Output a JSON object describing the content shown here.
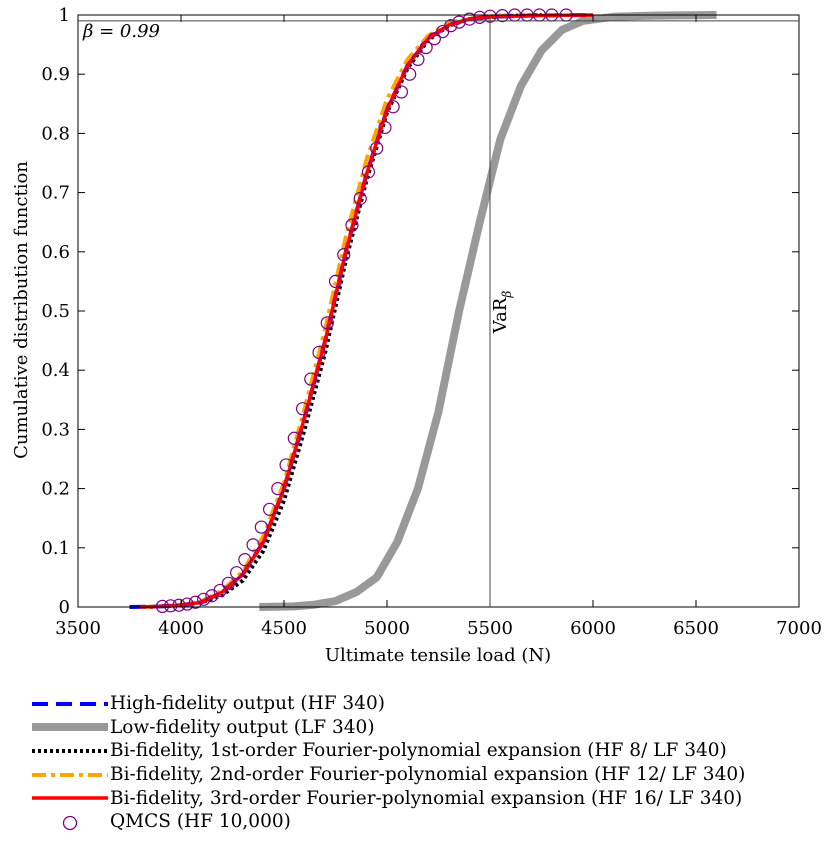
{
  "chart_data": {
    "type": "line",
    "xlabel": "Ultimate tensile load (N)",
    "ylabel": "Cumulative distribution function",
    "xlim": [
      3500,
      7000
    ],
    "ylim": [
      0,
      1
    ],
    "x_ticks": [
      3500,
      4000,
      4500,
      5000,
      5500,
      6000,
      6500,
      7000
    ],
    "y_ticks": [
      0,
      0.1,
      0.2,
      0.3,
      0.4,
      0.5,
      0.6,
      0.7,
      0.8,
      0.9,
      1
    ],
    "annotations": {
      "beta_label": "β = 0.99",
      "var_label": "VaR",
      "var_subscript": "β",
      "var_x": 5500,
      "beta_y": 0.99
    },
    "series": [
      {
        "name": "High-fidelity output (HF 340)",
        "color": "#0000ff",
        "style": "dashed",
        "points": [
          [
            3750,
            0
          ],
          [
            3900,
            0.001
          ],
          [
            4000,
            0.003
          ],
          [
            4100,
            0.008
          ],
          [
            4200,
            0.025
          ],
          [
            4300,
            0.055
          ],
          [
            4400,
            0.11
          ],
          [
            4500,
            0.2
          ],
          [
            4600,
            0.32
          ],
          [
            4700,
            0.45
          ],
          [
            4800,
            0.6
          ],
          [
            4900,
            0.73
          ],
          [
            5000,
            0.84
          ],
          [
            5100,
            0.915
          ],
          [
            5200,
            0.96
          ],
          [
            5300,
            0.983
          ],
          [
            5400,
            0.993
          ],
          [
            5500,
            0.997
          ],
          [
            5700,
            0.999
          ],
          [
            6000,
            1
          ]
        ]
      },
      {
        "name": "Low-fidelity output (LF 340)",
        "color": "#999999",
        "style": "solid-thick",
        "points": [
          [
            4380,
            0
          ],
          [
            4550,
            0.001
          ],
          [
            4650,
            0.004
          ],
          [
            4750,
            0.01
          ],
          [
            4850,
            0.025
          ],
          [
            4950,
            0.05
          ],
          [
            5050,
            0.11
          ],
          [
            5150,
            0.2
          ],
          [
            5250,
            0.33
          ],
          [
            5350,
            0.5
          ],
          [
            5450,
            0.65
          ],
          [
            5550,
            0.79
          ],
          [
            5650,
            0.88
          ],
          [
            5750,
            0.94
          ],
          [
            5850,
            0.975
          ],
          [
            5950,
            0.99
          ],
          [
            6100,
            0.997
          ],
          [
            6300,
            0.999
          ],
          [
            6600,
            1
          ]
        ]
      },
      {
        "name": "Bi-fidelity, 1st-order Fourier-polynomial expansion (HF 8/ LF 340)",
        "color": "#000000",
        "style": "dotted",
        "points": [
          [
            3850,
            0
          ],
          [
            4000,
            0.003
          ],
          [
            4100,
            0.008
          ],
          [
            4200,
            0.02
          ],
          [
            4300,
            0.045
          ],
          [
            4400,
            0.095
          ],
          [
            4500,
            0.18
          ],
          [
            4600,
            0.3
          ],
          [
            4700,
            0.43
          ],
          [
            4800,
            0.585
          ],
          [
            4900,
            0.72
          ],
          [
            5000,
            0.835
          ],
          [
            5100,
            0.91
          ],
          [
            5200,
            0.958
          ],
          [
            5300,
            0.982
          ],
          [
            5400,
            0.993
          ],
          [
            5550,
            0.998
          ],
          [
            5750,
            1
          ]
        ]
      },
      {
        "name": "Bi-fidelity, 2nd-order Fourier-polynomial expansion (HF 12/ LF 340)",
        "color": "#ffa500",
        "style": "dashdot",
        "points": [
          [
            3820,
            0
          ],
          [
            4000,
            0.003
          ],
          [
            4100,
            0.01
          ],
          [
            4200,
            0.028
          ],
          [
            4300,
            0.06
          ],
          [
            4400,
            0.12
          ],
          [
            4500,
            0.21
          ],
          [
            4600,
            0.335
          ],
          [
            4700,
            0.47
          ],
          [
            4800,
            0.625
          ],
          [
            4900,
            0.755
          ],
          [
            5000,
            0.858
          ],
          [
            5100,
            0.925
          ],
          [
            5200,
            0.965
          ],
          [
            5300,
            0.986
          ],
          [
            5400,
            0.995
          ],
          [
            5550,
            0.999
          ],
          [
            5700,
            1
          ]
        ]
      },
      {
        "name": "Bi-fidelity, 3rd-order Fourier-polynomial expansion (HF 16/ LF 340)",
        "color": "#ff0000",
        "style": "solid",
        "points": [
          [
            3800,
            0
          ],
          [
            3900,
            0.001
          ],
          [
            4000,
            0.003
          ],
          [
            4100,
            0.008
          ],
          [
            4200,
            0.025
          ],
          [
            4300,
            0.055
          ],
          [
            4400,
            0.11
          ],
          [
            4500,
            0.2
          ],
          [
            4600,
            0.32
          ],
          [
            4700,
            0.45
          ],
          [
            4800,
            0.6
          ],
          [
            4900,
            0.73
          ],
          [
            5000,
            0.84
          ],
          [
            5100,
            0.915
          ],
          [
            5200,
            0.96
          ],
          [
            5300,
            0.983
          ],
          [
            5400,
            0.993
          ],
          [
            5500,
            0.997
          ],
          [
            5700,
            0.999
          ],
          [
            6000,
            1
          ]
        ]
      },
      {
        "name": "QMCS (HF 10,000)",
        "color": "#800080",
        "style": "markers",
        "points": [
          [
            3910,
            0.001
          ],
          [
            3950,
            0.002
          ],
          [
            3990,
            0.003
          ],
          [
            4030,
            0.005
          ],
          [
            4070,
            0.008
          ],
          [
            4110,
            0.013
          ],
          [
            4150,
            0.019
          ],
          [
            4190,
            0.028
          ],
          [
            4230,
            0.04
          ],
          [
            4270,
            0.058
          ],
          [
            4310,
            0.08
          ],
          [
            4350,
            0.105
          ],
          [
            4390,
            0.135
          ],
          [
            4430,
            0.165
          ],
          [
            4470,
            0.2
          ],
          [
            4510,
            0.24
          ],
          [
            4550,
            0.285
          ],
          [
            4590,
            0.335
          ],
          [
            4630,
            0.385
          ],
          [
            4670,
            0.43
          ],
          [
            4710,
            0.48
          ],
          [
            4750,
            0.55
          ],
          [
            4790,
            0.595
          ],
          [
            4830,
            0.645
          ],
          [
            4870,
            0.69
          ],
          [
            4910,
            0.735
          ],
          [
            4950,
            0.775
          ],
          [
            4990,
            0.81
          ],
          [
            5030,
            0.845
          ],
          [
            5070,
            0.87
          ],
          [
            5110,
            0.9
          ],
          [
            5150,
            0.925
          ],
          [
            5190,
            0.945
          ],
          [
            5230,
            0.96
          ],
          [
            5270,
            0.972
          ],
          [
            5310,
            0.982
          ],
          [
            5350,
            0.988
          ],
          [
            5400,
            0.993
          ],
          [
            5450,
            0.996
          ],
          [
            5500,
            0.998
          ],
          [
            5560,
            0.999
          ],
          [
            5620,
            1
          ],
          [
            5680,
            1
          ],
          [
            5740,
            1
          ],
          [
            5800,
            1
          ],
          [
            5870,
            1
          ]
        ]
      }
    ]
  }
}
